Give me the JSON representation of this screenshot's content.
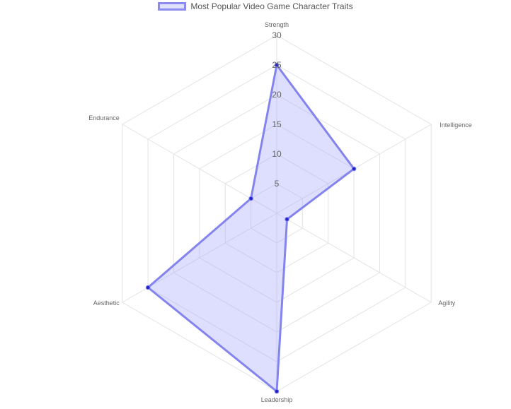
{
  "chart_data": {
    "type": "radar",
    "categories": [
      "Strength",
      "Intelligence",
      "Agility",
      "Leadership",
      "Aesthetic",
      "Endurance"
    ],
    "series": [
      {
        "name": "Most Popular Video Game Character Traits",
        "values": [
          25,
          15,
          2,
          30,
          25,
          5
        ]
      }
    ],
    "r_ticks": [
      5,
      10,
      15,
      20,
      25,
      30
    ],
    "rlim": [
      0,
      30
    ],
    "grid": true,
    "legend_position": "top-center",
    "colors": {
      "line": "#8484ee",
      "fill": "rgba(160,160,255,0.35)",
      "point": "#2525cc",
      "grid": "#e3e3e3"
    }
  }
}
